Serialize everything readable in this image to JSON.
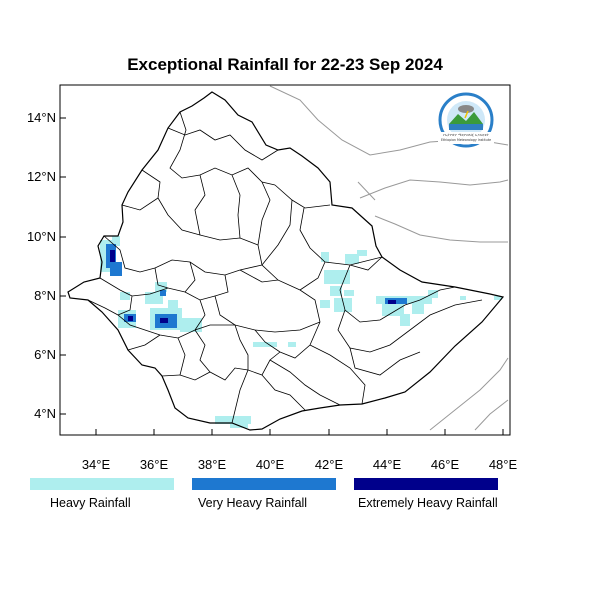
{
  "title": "Exceptional Rainfall for 22-23 Sep 2024",
  "map": {
    "lat_ticks": [
      "4°N",
      "6°N",
      "8°N",
      "10°N",
      "12°N",
      "14°N"
    ],
    "lon_ticks": [
      "34°E",
      "36°E",
      "38°E",
      "40°E",
      "42°E",
      "44°E",
      "46°E",
      "48°E"
    ]
  },
  "logo": {
    "text": "የኢትዮጵያ ሜቲዮሮሎጂ ኢንስቲቱት",
    "subtext": "Ethiopian Meteorology Institute"
  },
  "legend": [
    {
      "label": "Heavy Rainfall",
      "color": "#aeeeee"
    },
    {
      "label": "Very Heavy Rainfall",
      "color": "#1e78d0"
    },
    {
      "label": "Extremely Heavy Rainfall",
      "color": "#00008b"
    }
  ]
}
